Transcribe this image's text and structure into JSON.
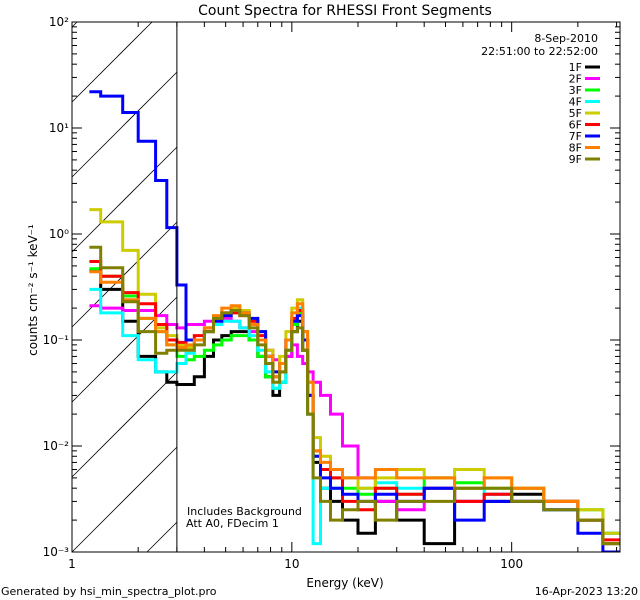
{
  "chart_data": {
    "type": "line",
    "title": "Count Spectra for RHESSI Front Segments",
    "xlabel": "Energy (keV)",
    "ylabel": "counts cm⁻² s⁻¹ keV⁻¹",
    "xscale": "log",
    "yscale": "log",
    "xlim": [
      1,
      311
    ],
    "ylim": [
      0.001,
      100
    ],
    "x_ticks": [
      {
        "value": 1,
        "label": "1"
      },
      {
        "value": 10,
        "label": "10"
      },
      {
        "value": 100,
        "label": "100"
      }
    ],
    "y_ticks": [
      {
        "value": 100,
        "label": "10²"
      },
      {
        "value": 10,
        "label": "10¹"
      },
      {
        "value": 1,
        "label": "10⁰"
      },
      {
        "value": 0.1,
        "label": "10⁻¹"
      },
      {
        "value": 0.01,
        "label": "10⁻²"
      },
      {
        "value": 0.001,
        "label": "10⁻³"
      }
    ],
    "hatched_region_keV": [
      1,
      3
    ],
    "date": "8-Sep-2010",
    "time_range": "22:51:00 to 22:52:00",
    "legend_placement": "top-right",
    "annotations": [
      "Includes Background",
      "Att A0, FDecim 1"
    ],
    "energy_edges": [
      1.2,
      1.35,
      1.7,
      2.0,
      2.4,
      2.7,
      3.0,
      3.3,
      3.6,
      4.0,
      4.4,
      4.8,
      5.3,
      5.8,
      6.4,
      7.0,
      7.6,
      8.2,
      8.8,
      9.4,
      10.0,
      10.6,
      11.2,
      11.8,
      12.5,
      13.5,
      15,
      17,
      20,
      24,
      30,
      40,
      55,
      75,
      100,
      140,
      200,
      260,
      310
    ],
    "series": [
      {
        "name": "1F",
        "color": "#000000",
        "values": [
          0.45,
          0.3,
          0.15,
          0.07,
          0.05,
          0.04,
          0.038,
          0.038,
          0.045,
          0.07,
          0.1,
          0.11,
          0.12,
          0.12,
          0.1,
          0.07,
          0.045,
          0.03,
          0.04,
          0.07,
          0.12,
          0.15,
          0.08,
          0.02,
          0.007,
          0.004,
          0.003,
          0.002,
          0.0015,
          0.003,
          0.002,
          0.0012,
          0.003,
          0.003,
          0.0035,
          0.003,
          0.002,
          0.0012
        ]
      },
      {
        "name": "2F",
        "color": "#ff00ff",
        "values": [
          0.21,
          0.2,
          0.19,
          0.19,
          0.17,
          0.14,
          0.13,
          0.14,
          0.14,
          0.15,
          0.16,
          0.16,
          0.15,
          0.13,
          0.12,
          0.1,
          0.08,
          0.065,
          0.06,
          0.07,
          0.09,
          0.07,
          0.06,
          0.05,
          0.04,
          0.03,
          0.02,
          0.01,
          0.005,
          0.003,
          0.0025,
          0.004,
          0.003,
          0.0035,
          0.004,
          0.003,
          0.002,
          0.0015
        ]
      },
      {
        "name": "3F",
        "color": "#00ff00",
        "values": [
          0.47,
          0.4,
          0.26,
          0.16,
          0.12,
          0.09,
          0.07,
          0.065,
          0.07,
          0.08,
          0.09,
          0.1,
          0.11,
          0.11,
          0.1,
          0.07,
          0.045,
          0.035,
          0.04,
          0.08,
          0.14,
          0.18,
          0.1,
          0.03,
          0.008,
          0.006,
          0.005,
          0.004,
          0.0035,
          0.004,
          0.0035,
          0.005,
          0.0045,
          0.004,
          0.004,
          0.003,
          0.0025,
          0.0015
        ]
      },
      {
        "name": "4F",
        "color": "#00ffff",
        "values": [
          0.3,
          0.18,
          0.11,
          0.065,
          0.05,
          0.05,
          0.06,
          0.075,
          0.1,
          0.12,
          0.14,
          0.15,
          0.15,
          0.13,
          0.11,
          0.08,
          0.05,
          0.035,
          0.04,
          0.08,
          0.15,
          0.2,
          0.1,
          0.02,
          0.0012,
          0.004,
          0.004,
          0.005,
          0.004,
          0.0045,
          0.004,
          0.004,
          0.004,
          0.0035,
          0.003,
          0.0025,
          0.002,
          0.0015
        ]
      },
      {
        "name": "5F",
        "color": "#cccc00",
        "values": [
          1.7,
          1.3,
          0.7,
          0.27,
          0.13,
          0.11,
          0.09,
          0.085,
          0.1,
          0.12,
          0.15,
          0.17,
          0.2,
          0.19,
          0.15,
          0.12,
          0.08,
          0.05,
          0.07,
          0.12,
          0.2,
          0.24,
          0.12,
          0.04,
          0.012,
          0.008,
          0.006,
          0.005,
          0.004,
          0.005,
          0.006,
          0.005,
          0.006,
          0.005,
          0.004,
          0.003,
          0.0025,
          0.0015
        ]
      },
      {
        "name": "6F",
        "color": "#ff0000",
        "values": [
          0.55,
          0.4,
          0.28,
          0.22,
          0.14,
          0.1,
          0.095,
          0.1,
          0.11,
          0.13,
          0.16,
          0.18,
          0.18,
          0.17,
          0.15,
          0.11,
          0.07,
          0.045,
          0.05,
          0.1,
          0.16,
          0.19,
          0.1,
          0.03,
          0.009,
          0.006,
          0.005,
          0.003,
          0.0025,
          0.004,
          0.0035,
          0.004,
          0.003,
          0.0035,
          0.003,
          0.003,
          0.002,
          0.0013
        ]
      },
      {
        "name": "7F",
        "color": "#0000ff",
        "values": [
          22,
          20,
          14,
          7.5,
          3.2,
          1.15,
          0.33,
          0.1,
          0.1,
          0.12,
          0.15,
          0.17,
          0.19,
          0.18,
          0.16,
          0.12,
          0.07,
          0.05,
          0.06,
          0.1,
          0.15,
          0.17,
          0.1,
          0.03,
          0.008,
          0.005,
          0.004,
          0.0035,
          0.003,
          0.0035,
          0.003,
          0.004,
          0.002,
          0.003,
          0.003,
          0.0025,
          0.0015,
          0.001
        ]
      },
      {
        "name": "8F",
        "color": "#ff8000",
        "values": [
          0.44,
          0.35,
          0.24,
          0.16,
          0.12,
          0.09,
          0.085,
          0.09,
          0.1,
          0.13,
          0.17,
          0.2,
          0.21,
          0.18,
          0.14,
          0.1,
          0.07,
          0.045,
          0.06,
          0.1,
          0.18,
          0.22,
          0.12,
          0.04,
          0.009,
          0.007,
          0.006,
          0.005,
          0.005,
          0.006,
          0.005,
          0.005,
          0.004,
          0.005,
          0.004,
          0.003,
          0.002,
          0.0012
        ]
      },
      {
        "name": "9F",
        "color": "#808000",
        "values": [
          0.75,
          0.48,
          0.23,
          0.12,
          0.075,
          0.08,
          0.08,
          0.08,
          0.09,
          0.12,
          0.16,
          0.18,
          0.19,
          0.17,
          0.13,
          0.09,
          0.06,
          0.04,
          0.05,
          0.08,
          0.12,
          0.13,
          0.08,
          0.02,
          0.005,
          0.003,
          0.002,
          0.0025,
          0.003,
          0.002,
          0.003,
          0.003,
          0.004,
          0.004,
          0.003,
          0.0025,
          0.002,
          0.0012
        ]
      }
    ]
  },
  "footer": {
    "generated_by": "Generated by hsi_min_spectra_plot.pro",
    "timestamp": "16-Apr-2023 13:20"
  }
}
